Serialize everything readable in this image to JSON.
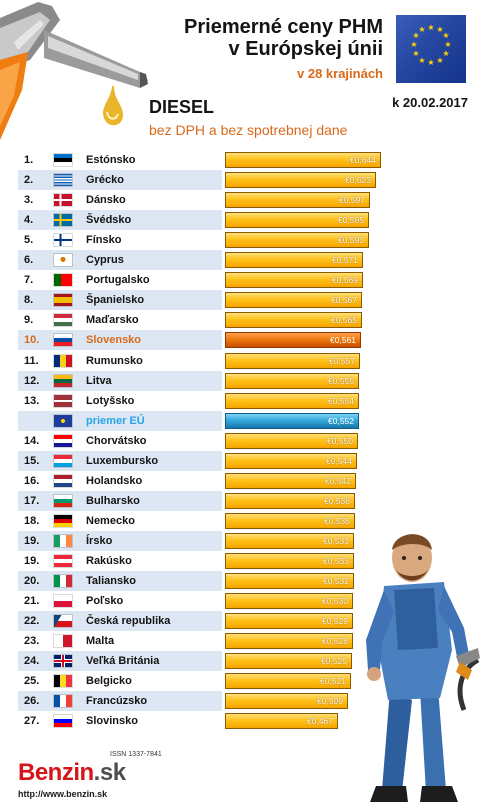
{
  "header": {
    "title_line1": "Priemerné ceny PHM",
    "title_line2": "v Európskej únii",
    "subtitle": "v 28 krajinách",
    "date": "k 20.02.2017",
    "fuel": "DIESEL",
    "note": "bez DPH a bez spotrebnej dane"
  },
  "logo": {
    "brand": "Benzin",
    "tld": ".sk",
    "issn": "ISSN 1337-7841",
    "url": "http://www.benzin.sk"
  },
  "colors": {
    "accent_orange": "#d9691a",
    "highlight_blue": "#29a4e6",
    "bar_gold": "#ffc21a"
  },
  "chart_data": {
    "type": "bar",
    "orientation": "horizontal",
    "value_prefix": "€",
    "rows": [
      {
        "rank": "1.",
        "country": "Estónsko",
        "value": 0.644,
        "label": "€0,644",
        "flag": "ee"
      },
      {
        "rank": "2.",
        "country": "Grécko",
        "value": 0.623,
        "label": "€0,623",
        "flag": "gr"
      },
      {
        "rank": "3.",
        "country": "Dánsko",
        "value": 0.597,
        "label": "€0,597",
        "flag": "dk"
      },
      {
        "rank": "4.",
        "country": "Švédsko",
        "value": 0.595,
        "label": "€0,595",
        "flag": "se"
      },
      {
        "rank": "5.",
        "country": "Fínsko",
        "value": 0.593,
        "label": "€0,593",
        "flag": "fi"
      },
      {
        "rank": "6.",
        "country": "Cyprus",
        "value": 0.571,
        "label": "€0,571",
        "flag": "cy"
      },
      {
        "rank": "7.",
        "country": "Portugalsko",
        "value": 0.569,
        "label": "€0,569",
        "flag": "pt"
      },
      {
        "rank": "8.",
        "country": "Španielsko",
        "value": 0.567,
        "label": "€0,567",
        "flag": "es"
      },
      {
        "rank": "9.",
        "country": "Maďarsko",
        "value": 0.565,
        "label": "€0,565",
        "flag": "hu"
      },
      {
        "rank": "10.",
        "country": "Slovensko",
        "value": 0.561,
        "label": "€0,561",
        "flag": "sk",
        "highlight": "sk"
      },
      {
        "rank": "11.",
        "country": "Rumunsko",
        "value": 0.557,
        "label": "€0,557",
        "flag": "ro"
      },
      {
        "rank": "12.",
        "country": "Litva",
        "value": 0.555,
        "label": "€0,555",
        "flag": "lt"
      },
      {
        "rank": "13.",
        "country": "Lotyšsko",
        "value": 0.554,
        "label": "€0,554",
        "flag": "lv"
      },
      {
        "rank": "",
        "country": "priemer EÚ",
        "value": 0.552,
        "label": "€0,552",
        "flag": "eu",
        "highlight": "eu"
      },
      {
        "rank": "14.",
        "country": "Chorvátsko",
        "value": 0.55,
        "label": "€0,550",
        "flag": "hr"
      },
      {
        "rank": "15.",
        "country": "Luxembursko",
        "value": 0.544,
        "label": "€0,544",
        "flag": "lu"
      },
      {
        "rank": "16.",
        "country": "Holandsko",
        "value": 0.542,
        "label": "€0,542",
        "flag": "nl"
      },
      {
        "rank": "17.",
        "country": "Bulharsko",
        "value": 0.536,
        "label": "€0,536",
        "flag": "bg"
      },
      {
        "rank": "18.",
        "country": "Nemecko",
        "value": 0.535,
        "label": "€0,535",
        "flag": "de"
      },
      {
        "rank": "19.",
        "country": "Írsko",
        "value": 0.533,
        "label": "€0,533",
        "flag": "ie"
      },
      {
        "rank": "19.",
        "country": "Rakúsko",
        "value": 0.533,
        "label": "€0,533",
        "flag": "at"
      },
      {
        "rank": "20.",
        "country": "Taliansko",
        "value": 0.532,
        "label": "€0,532",
        "flag": "it"
      },
      {
        "rank": "21.",
        "country": "Poľsko",
        "value": 0.53,
        "label": "€0,530",
        "flag": "pl"
      },
      {
        "rank": "22.",
        "country": "Česká republika",
        "value": 0.529,
        "label": "€0,529",
        "flag": "cz"
      },
      {
        "rank": "23.",
        "country": "Malta",
        "value": 0.528,
        "label": "€0,528",
        "flag": "mt"
      },
      {
        "rank": "24.",
        "country": "Veľká Británia",
        "value": 0.525,
        "label": "€0,525",
        "flag": "gb"
      },
      {
        "rank": "25.",
        "country": "Belgicko",
        "value": 0.521,
        "label": "€0,521",
        "flag": "be"
      },
      {
        "rank": "26.",
        "country": "Francúzsko",
        "value": 0.509,
        "label": "€0,509",
        "flag": "fr"
      },
      {
        "rank": "27.",
        "country": "Slovinsko",
        "value": 0.467,
        "label": "€0,467",
        "flag": "si"
      }
    ]
  }
}
